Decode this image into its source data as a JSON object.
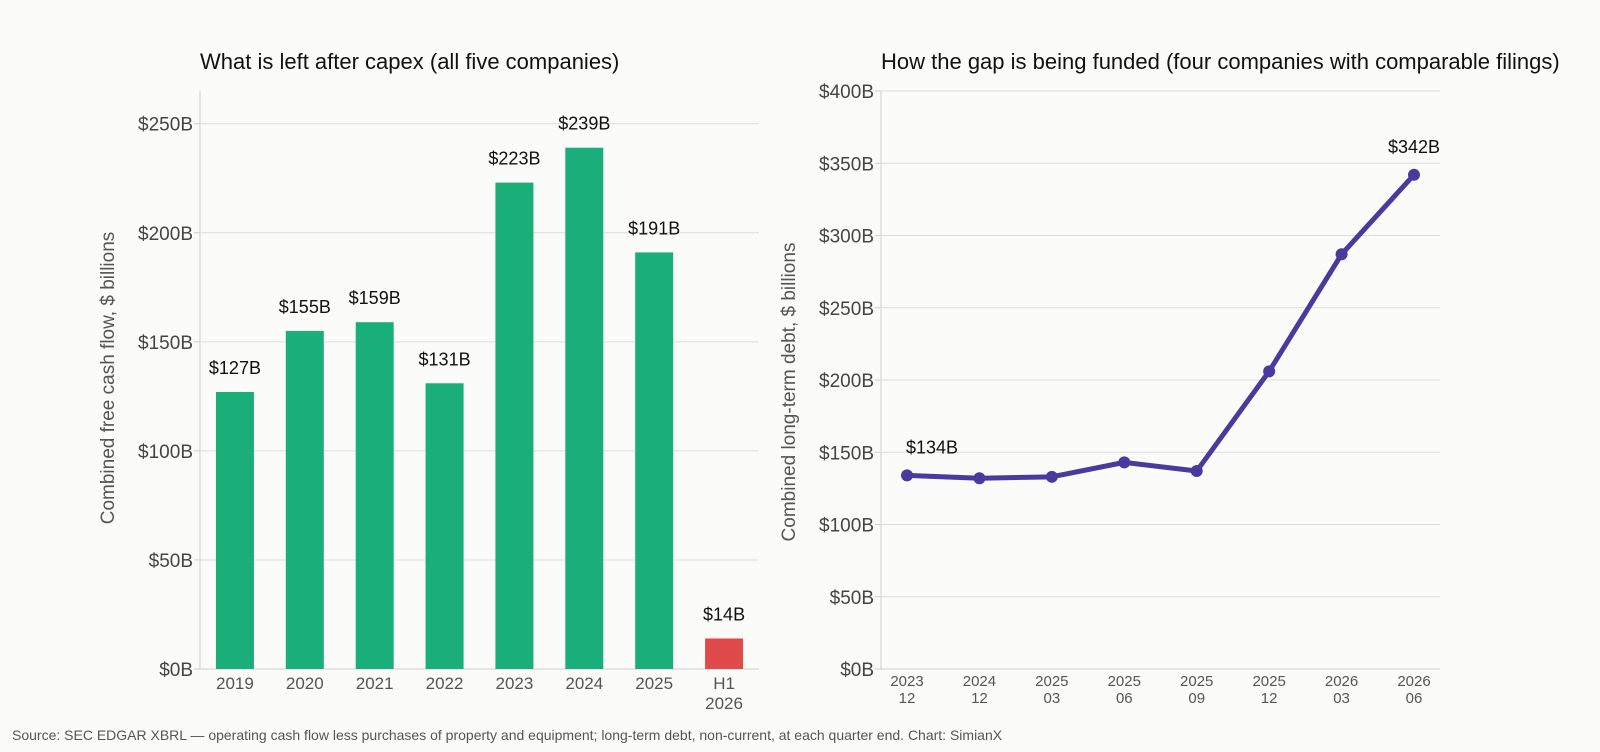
{
  "chart_data": [
    {
      "type": "bar",
      "title": "What is left after capex  (all five companies)",
      "ylabel": "Combined free cash flow, $ billions",
      "categories": [
        "2019",
        "2020",
        "2021",
        "2022",
        "2023",
        "2024",
        "2025",
        "H1 2026"
      ],
      "category_lines": [
        [
          "2019"
        ],
        [
          "2020"
        ],
        [
          "2021"
        ],
        [
          "2022"
        ],
        [
          "2023"
        ],
        [
          "2024"
        ],
        [
          "2025"
        ],
        [
          "H1",
          "2026"
        ]
      ],
      "values": [
        127,
        155,
        159,
        131,
        223,
        239,
        191,
        14
      ],
      "data_labels": [
        "$127B",
        "$155B",
        "$159B",
        "$131B",
        "$223B",
        "$239B",
        "$191B",
        "$14B"
      ],
      "colors": [
        "#1aaf79",
        "#1aaf79",
        "#1aaf79",
        "#1aaf79",
        "#1aaf79",
        "#1aaf79",
        "#1aaf79",
        "#e04a4a"
      ],
      "ylim": [
        0,
        265
      ],
      "yticks": [
        0,
        50,
        100,
        150,
        200,
        250
      ],
      "ytick_labels": [
        "$0B",
        "$50B",
        "$100B",
        "$150B",
        "$200B",
        "$250B"
      ],
      "grid": "horizontal",
      "legend": "none"
    },
    {
      "type": "line",
      "title": "How the gap is being funded  (four companies with comparable filings)",
      "ylabel": "Combined long-term debt, $ billions",
      "x": [
        "2023 12",
        "2024 12",
        "2025 03",
        "2025 06",
        "2025 09",
        "2025 12",
        "2026 03",
        "2026 06"
      ],
      "x_lines": [
        [
          "2023",
          "12"
        ],
        [
          "2024",
          "12"
        ],
        [
          "2025",
          "03"
        ],
        [
          "2025",
          "06"
        ],
        [
          "2025",
          "09"
        ],
        [
          "2025",
          "12"
        ],
        [
          "2026",
          "03"
        ],
        [
          "2026",
          "06"
        ]
      ],
      "series": [
        {
          "values": [
            134,
            132,
            133,
            143,
            137,
            206,
            287,
            342
          ],
          "color": "#4a3a9e"
        }
      ],
      "point_labels": {
        "0": "$134B",
        "7": "$342B"
      },
      "ylim": [
        0,
        400
      ],
      "yticks": [
        0,
        50,
        100,
        150,
        200,
        250,
        300,
        350,
        400
      ],
      "ytick_labels": [
        "$0B",
        "$50B",
        "$100B",
        "$150B",
        "$200B",
        "$250B",
        "$300B",
        "$350B",
        "$400B"
      ],
      "grid": "horizontal",
      "legend": "none"
    }
  ],
  "source": "Source: SEC EDGAR XBRL — operating cash flow less purchases of property and equipment; long-term debt, non-current, at each quarter end.  Chart: SimianX"
}
